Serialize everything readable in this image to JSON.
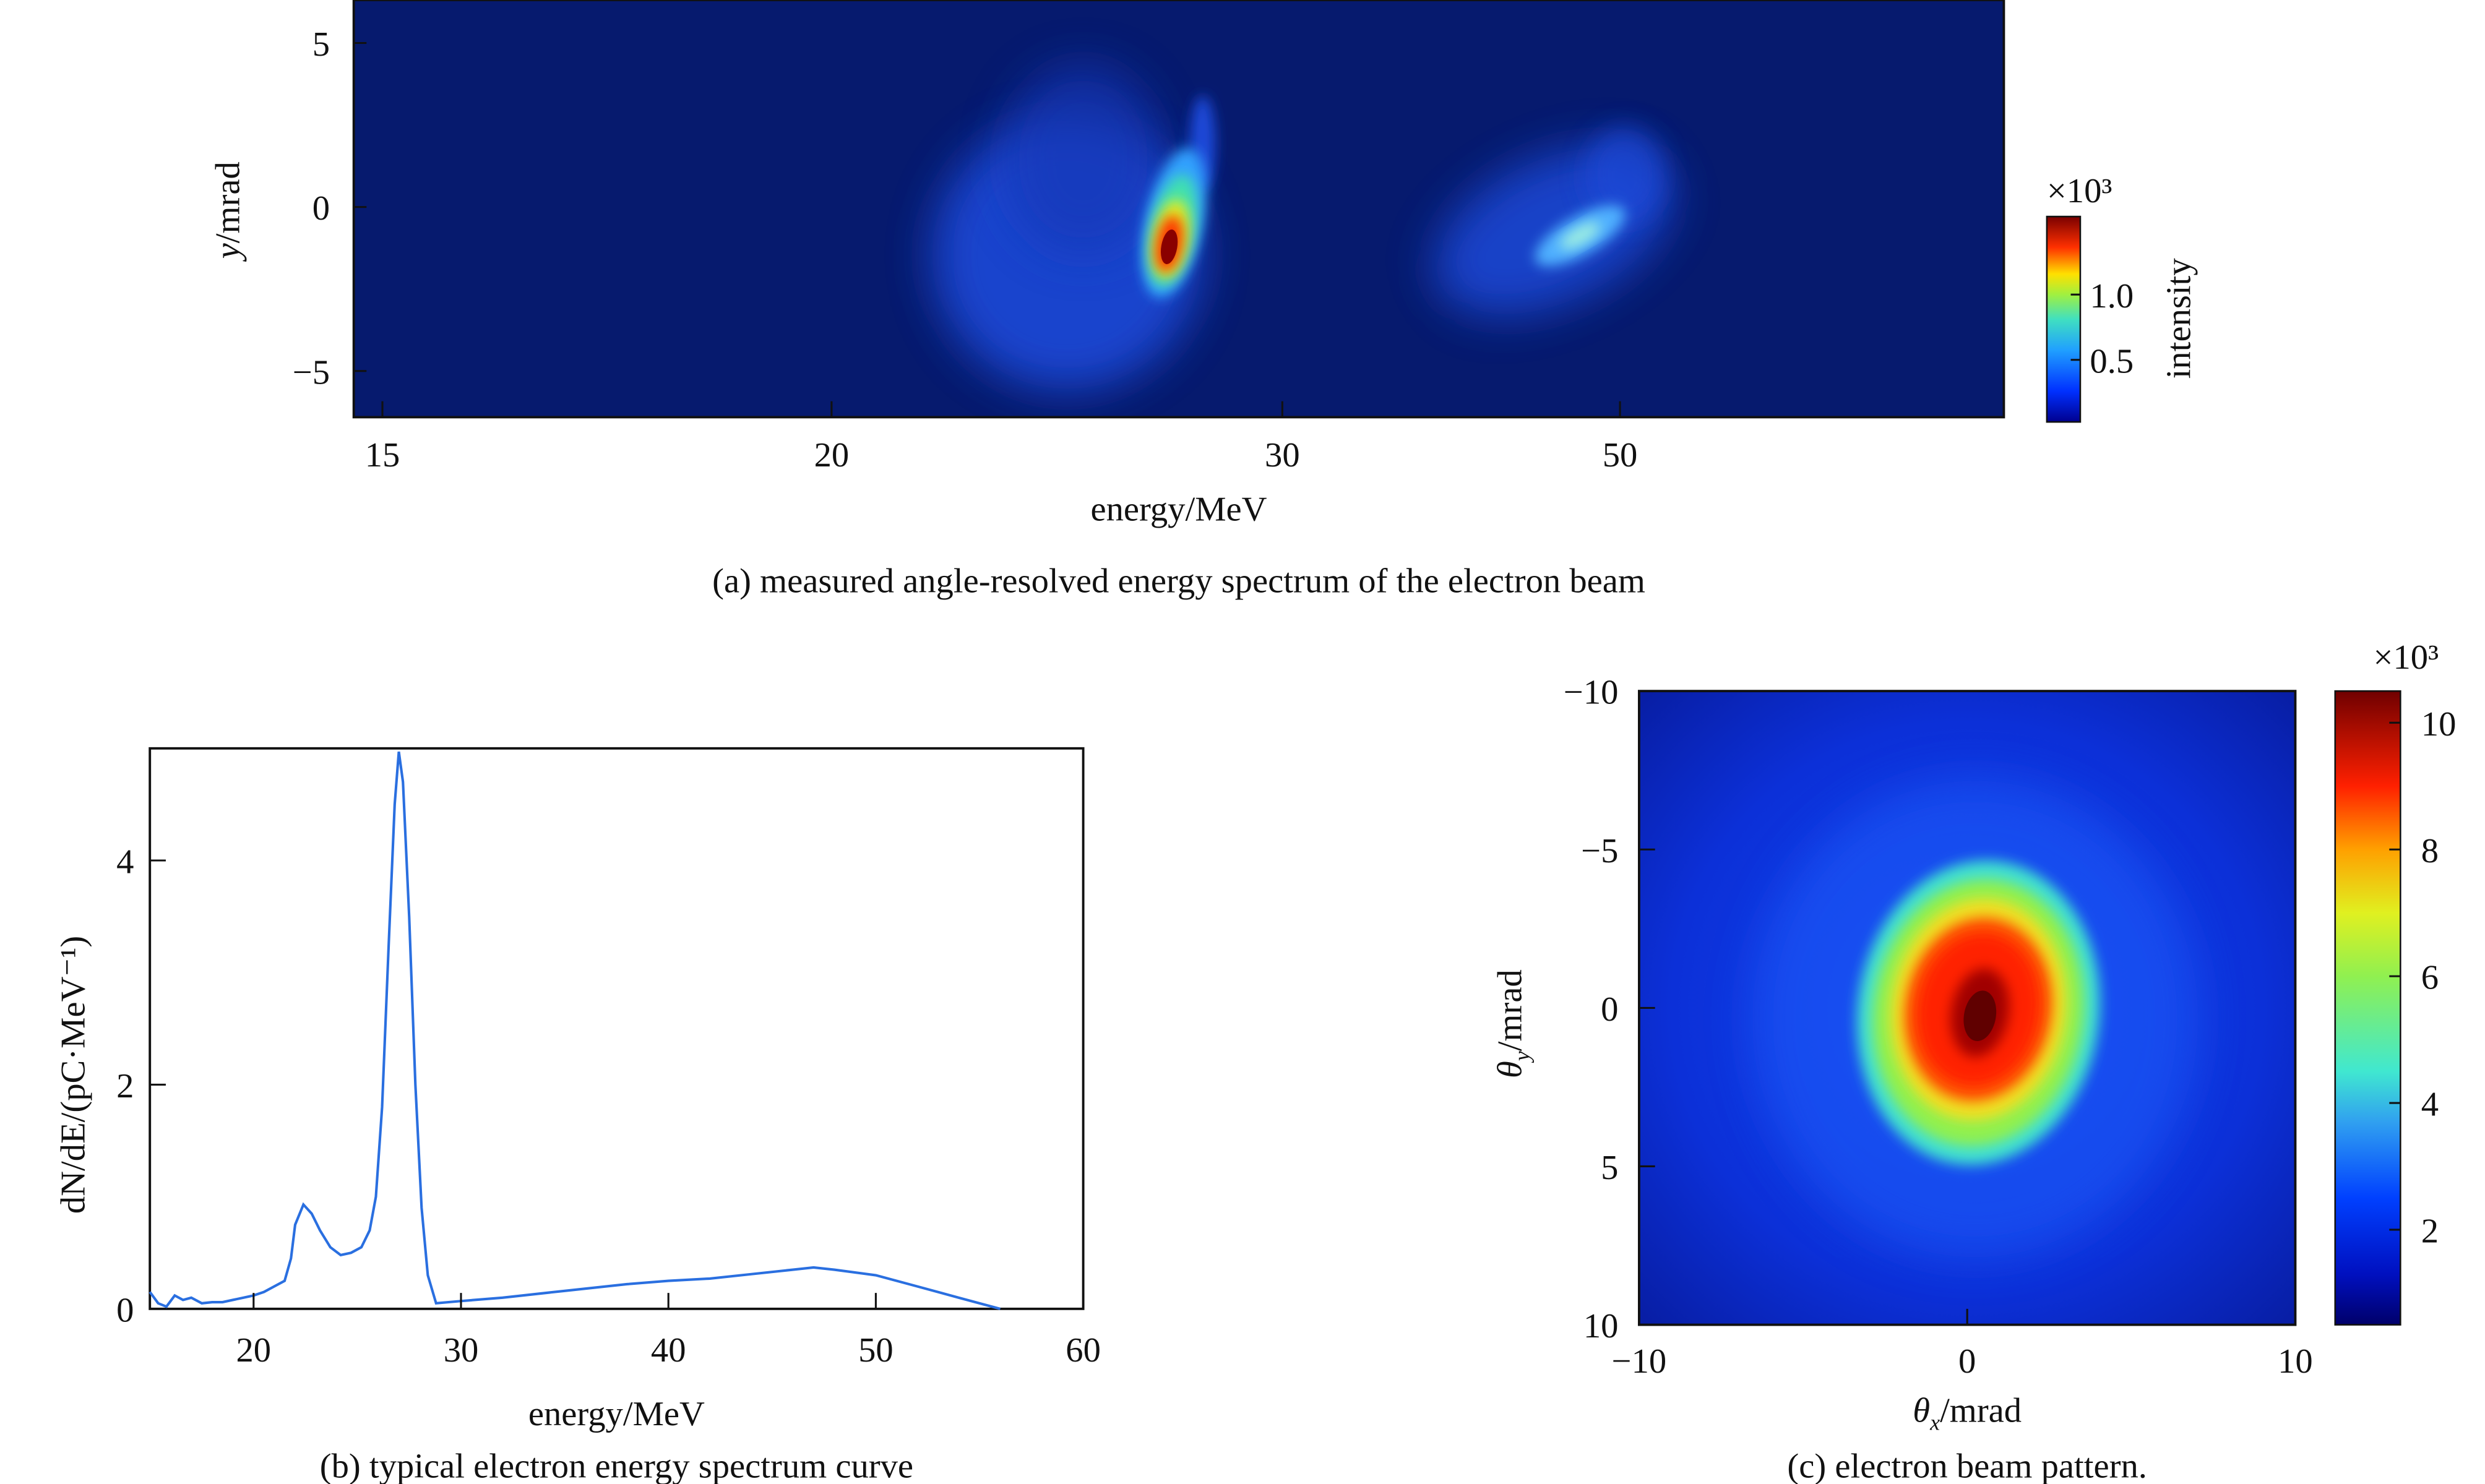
{
  "chart_data": [
    {
      "type": "heatmap",
      "panel": "a",
      "caption": "(a) measured angle-resolved energy spectrum of the electron beam",
      "xlabel": "energy/MeV",
      "ylabel": "y/mrad",
      "ylabel_italic": "y",
      "ylabel_rest": "/mrad",
      "xticks": [
        "15",
        "20",
        "30",
        "50"
      ],
      "yticks": [
        "5",
        "0",
        "−5"
      ],
      "ylim": [
        -6,
        6
      ],
      "colorbar": {
        "label": "intensity",
        "scale": "×10³",
        "ticks": [
          "1.0",
          "0.5"
        ],
        "range": [
          0,
          1.6
        ]
      },
      "features": [
        {
          "name": "main peak",
          "energy_MeV": 27,
          "y_mrad": -1.2,
          "intensity": 1.6
        },
        {
          "name": "secondary peak",
          "energy_MeV": 48,
          "y_mrad": -1.0,
          "intensity": 0.5
        }
      ]
    },
    {
      "type": "line",
      "panel": "b",
      "caption": "(b) typical electron energy spectrum curve",
      "xlabel": "energy/MeV",
      "ylabel": "dN/dE/(pC·MeV⁻¹)",
      "xlim": [
        15,
        60
      ],
      "ylim": [
        0,
        5
      ],
      "xticks": [
        "20",
        "30",
        "40",
        "50",
        "60"
      ],
      "yticks": [
        "0",
        "2",
        "4"
      ],
      "color": "#2a6fe0",
      "series": [
        {
          "name": "spectrum",
          "x": [
            15,
            15.4,
            15.8,
            16.2,
            16.6,
            17,
            17.5,
            18,
            18.5,
            19,
            19.5,
            20,
            20.5,
            21,
            21.5,
            21.8,
            22,
            22.4,
            22.8,
            23.2,
            23.7,
            24.2,
            24.7,
            25.2,
            25.6,
            25.9,
            26.2,
            26.5,
            26.8,
            27,
            27.2,
            27.5,
            27.8,
            28.1,
            28.4,
            28.8,
            30,
            32,
            35,
            38,
            40,
            42,
            44,
            46,
            47,
            48,
            50,
            52,
            54,
            56
          ],
          "y": [
            0.15,
            0.05,
            0.02,
            0.12,
            0.08,
            0.1,
            0.05,
            0.06,
            0.06,
            0.08,
            0.1,
            0.12,
            0.15,
            0.2,
            0.25,
            0.45,
            0.75,
            0.93,
            0.85,
            0.7,
            0.55,
            0.48,
            0.5,
            0.55,
            0.7,
            1.0,
            1.8,
            3.2,
            4.5,
            4.97,
            4.7,
            3.5,
            2.0,
            0.9,
            0.3,
            0.05,
            0.07,
            0.1,
            0.16,
            0.22,
            0.25,
            0.27,
            0.31,
            0.35,
            0.37,
            0.35,
            0.3,
            0.2,
            0.1,
            0.0
          ]
        }
      ]
    },
    {
      "type": "heatmap",
      "panel": "c",
      "caption": "(c) electron beam pattern.",
      "xlabel_italic": "θ",
      "xlabel_sub": "x",
      "xlabel_rest": "/mrad",
      "ylabel_italic": "θ",
      "ylabel_sub": "y",
      "ylabel_rest": "/mrad",
      "xlim": [
        -10,
        10
      ],
      "ylim": [
        -10,
        10
      ],
      "xticks": [
        "−10",
        "0",
        "10"
      ],
      "yticks": [
        "−10",
        "−5",
        "0",
        "5",
        "10"
      ],
      "colorbar": {
        "scale": "×10³",
        "ticks": [
          "10",
          "8",
          "6",
          "4",
          "2"
        ],
        "range": [
          0.5,
          10.5
        ]
      },
      "features": [
        {
          "name": "beam spot",
          "theta_x_mrad": 0.3,
          "theta_y_mrad": 0.2,
          "intensity": 10.5
        }
      ]
    }
  ]
}
